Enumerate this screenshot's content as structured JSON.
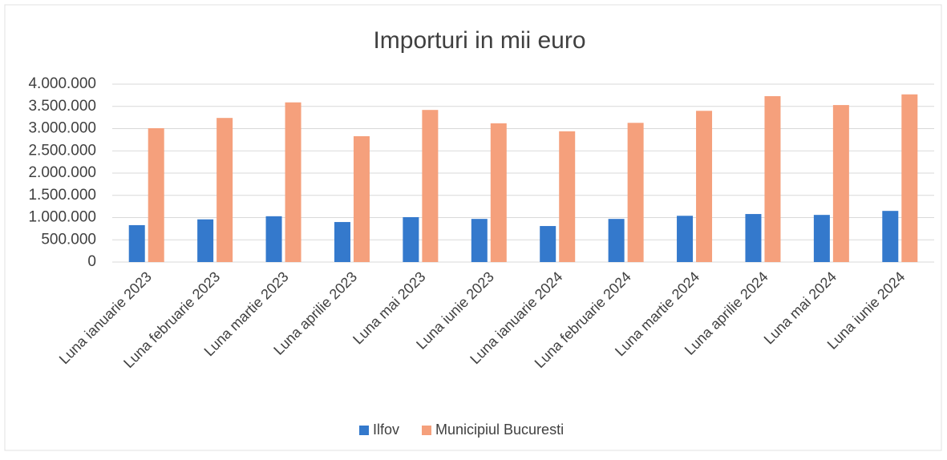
{
  "chart_data": {
    "type": "bar",
    "title": "Importuri in mii euro",
    "categories": [
      "Luna ianuarie 2023",
      "Luna februarie 2023",
      "Luna martie 2023",
      "Luna aprilie 2023",
      "Luna mai 2023",
      "Luna iunie 2023",
      "Luna ianuarie 2024",
      "Luna februarie 2024",
      "Luna martie 2024",
      "Luna aprilie 2024",
      "Luna mai 2024",
      "Luna iunie 2024"
    ],
    "series": [
      {
        "name": "Ilfov",
        "color": "#3479cc",
        "values": [
          830000,
          960000,
          1030000,
          900000,
          1010000,
          970000,
          810000,
          970000,
          1040000,
          1080000,
          1060000,
          1150000
        ]
      },
      {
        "name": "Municipiul Bucuresti",
        "color": "#f5a07c",
        "values": [
          3010000,
          3240000,
          3590000,
          2830000,
          3420000,
          3120000,
          2940000,
          3130000,
          3400000,
          3730000,
          3530000,
          3770000
        ]
      }
    ],
    "ylim": [
      0,
      4000000
    ],
    "yticks": [
      0,
      {
        "value": 500000,
        "label": "500.000"
      },
      {
        "value": 1000000,
        "label": "1.000.000"
      },
      {
        "value": 1500000,
        "label": "1.500.000"
      },
      {
        "value": 2000000,
        "label": "2.000.000"
      },
      {
        "value": 2500000,
        "label": "2.500.000"
      },
      {
        "value": 3000000,
        "label": "3.000.000"
      },
      {
        "value": 3500000,
        "label": "3.500.000"
      },
      {
        "value": 4000000,
        "label": "4.000.000"
      }
    ],
    "grid": true,
    "legend": "bottom"
  }
}
